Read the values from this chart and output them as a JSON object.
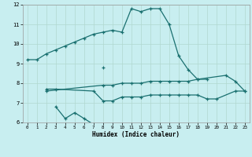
{
  "xlabel": "Humidex (Indice chaleur)",
  "background_color": "#c8eef0",
  "grid_color": "#b0d8d0",
  "line_color": "#1a7070",
  "xlim": [
    -0.5,
    23.5
  ],
  "ylim": [
    6,
    12
  ],
  "yticks": [
    6,
    7,
    8,
    9,
    10,
    11,
    12
  ],
  "xticks": [
    0,
    1,
    2,
    3,
    4,
    5,
    6,
    7,
    8,
    9,
    10,
    11,
    12,
    13,
    14,
    15,
    16,
    17,
    18,
    19,
    20,
    21,
    22,
    23
  ],
  "series": [
    {
      "x": [
        0,
        1,
        2,
        3,
        4,
        5,
        6,
        7,
        8,
        9,
        10,
        11,
        12,
        13,
        14,
        15,
        16,
        17,
        18,
        19
      ],
      "y": [
        9.2,
        9.2,
        9.5,
        9.7,
        9.9,
        10.1,
        10.3,
        10.5,
        10.6,
        10.7,
        10.6,
        11.8,
        11.65,
        11.8,
        11.8,
        11.0,
        9.4,
        8.7,
        8.2,
        8.2
      ]
    },
    {
      "x": [
        8
      ],
      "y": [
        8.8
      ]
    },
    {
      "x": [
        3,
        4,
        5,
        6,
        7
      ],
      "y": [
        6.8,
        6.2,
        6.5,
        6.2,
        5.9
      ]
    },
    {
      "x": [
        2,
        3,
        7,
        8,
        9,
        10,
        11,
        12,
        13,
        14,
        15,
        16,
        17,
        18,
        19,
        20,
        22,
        23
      ],
      "y": [
        7.7,
        7.7,
        7.6,
        7.1,
        7.1,
        7.3,
        7.3,
        7.3,
        7.4,
        7.4,
        7.4,
        7.4,
        7.4,
        7.4,
        7.2,
        7.2,
        7.6,
        7.6
      ]
    },
    {
      "x": [
        2,
        8,
        9,
        10,
        11,
        12,
        13,
        14,
        15,
        16,
        17,
        18,
        21,
        22,
        23
      ],
      "y": [
        7.6,
        7.9,
        7.9,
        8.0,
        8.0,
        8.0,
        8.1,
        8.1,
        8.1,
        8.1,
        8.1,
        8.2,
        8.4,
        8.1,
        7.6
      ]
    }
  ]
}
